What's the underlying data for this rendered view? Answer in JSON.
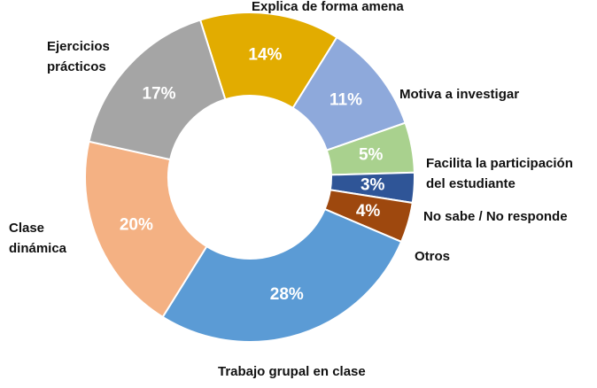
{
  "chart_data": {
    "type": "pie",
    "subtype": "donut",
    "title": "",
    "legend": "none",
    "slices": [
      {
        "category": "Explica de forma amena",
        "label_lines": [
          "Explica de forma amena"
        ],
        "value": 14,
        "display": "14%",
        "color": "#E2AC00"
      },
      {
        "category": "Motiva a investigar",
        "label_lines": [
          "Motiva a investigar"
        ],
        "value": 11,
        "display": "11%",
        "color": "#8EA9DB"
      },
      {
        "category": "Facilita la participación del estudiante",
        "label_lines": [
          "Facilita la participación",
          "del estudiante"
        ],
        "value": 5,
        "display": "5%",
        "color": "#A9D18E"
      },
      {
        "category": "No sabe / No responde",
        "label_lines": [
          "No sabe / No responde"
        ],
        "value": 3,
        "display": "3%",
        "color": "#2F5597"
      },
      {
        "category": "Otros",
        "label_lines": [
          "Otros"
        ],
        "value": 4,
        "display": "4%",
        "color": "#9E480E"
      },
      {
        "category": "Trabajo grupal en clase",
        "label_lines": [
          "Trabajo grupal en clase"
        ],
        "value": 28,
        "display": "28%",
        "color": "#5B9BD5"
      },
      {
        "category": "Clase dinámica",
        "label_lines": [
          "Clase",
          "dinámica"
        ],
        "value": 20,
        "display": "20%",
        "color": "#F4B183"
      },
      {
        "category": "Ejercicios prácticos",
        "label_lines": [
          "Ejercicios",
          "prácticos"
        ],
        "value": 17,
        "display": "17%",
        "color": "#A5A5A5"
      }
    ]
  }
}
